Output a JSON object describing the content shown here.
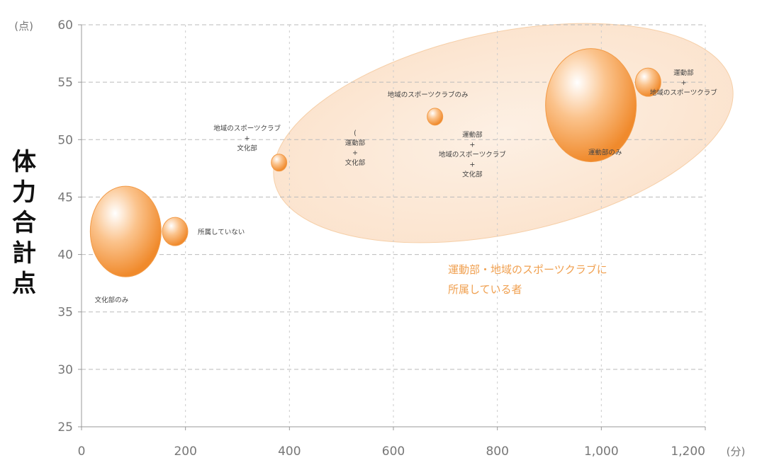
{
  "chart_data": {
    "type": "scatter",
    "title": "",
    "xlabel": "",
    "ylabel": "体力合計点",
    "x_unit": "(分)",
    "y_unit": "(点)",
    "xlim": [
      0,
      1200
    ],
    "ylim": [
      25,
      60
    ],
    "xticks": [
      "0",
      "200",
      "400",
      "600",
      "800",
      "1,000",
      "1,200"
    ],
    "yticks": [
      "25",
      "30",
      "35",
      "40",
      "45",
      "50",
      "55",
      "60"
    ],
    "grid": true,
    "bubble_color": "#f5a14e",
    "highlight_color": "#fce6d2",
    "points": [
      {
        "x": 85,
        "y": 42,
        "size": "large",
        "label": [
          "文化部のみ"
        ]
      },
      {
        "x": 180,
        "y": 42,
        "size": "small",
        "label": [
          "所属していない"
        ]
      },
      {
        "x": 380,
        "y": 48,
        "size": "tiny",
        "label": [
          "地域のスポーツクラブ",
          "+",
          "文化部"
        ]
      },
      {
        "x": 570,
        "y": 47,
        "size": "none",
        "label": [
          "(",
          "運動部",
          "+",
          "文化部"
        ]
      },
      {
        "x": 680,
        "y": 52,
        "size": "tiny",
        "label": [
          "地域のスポーツクラブのみ"
        ]
      },
      {
        "x": 760,
        "y": 49,
        "size": "none",
        "label": [
          "運動部",
          "+",
          "地域のスポーツクラブ",
          "+",
          "文化部"
        ]
      },
      {
        "x": 980,
        "y": 53,
        "size": "huge",
        "label": [
          "運動部のみ"
        ]
      },
      {
        "x": 1090,
        "y": 55,
        "size": "small",
        "label": [
          "運動部",
          "+",
          "地域のスポーツクラブ"
        ]
      }
    ],
    "annotation": [
      "運動部・地域のスポーツクラブに",
      "所属している者"
    ]
  }
}
